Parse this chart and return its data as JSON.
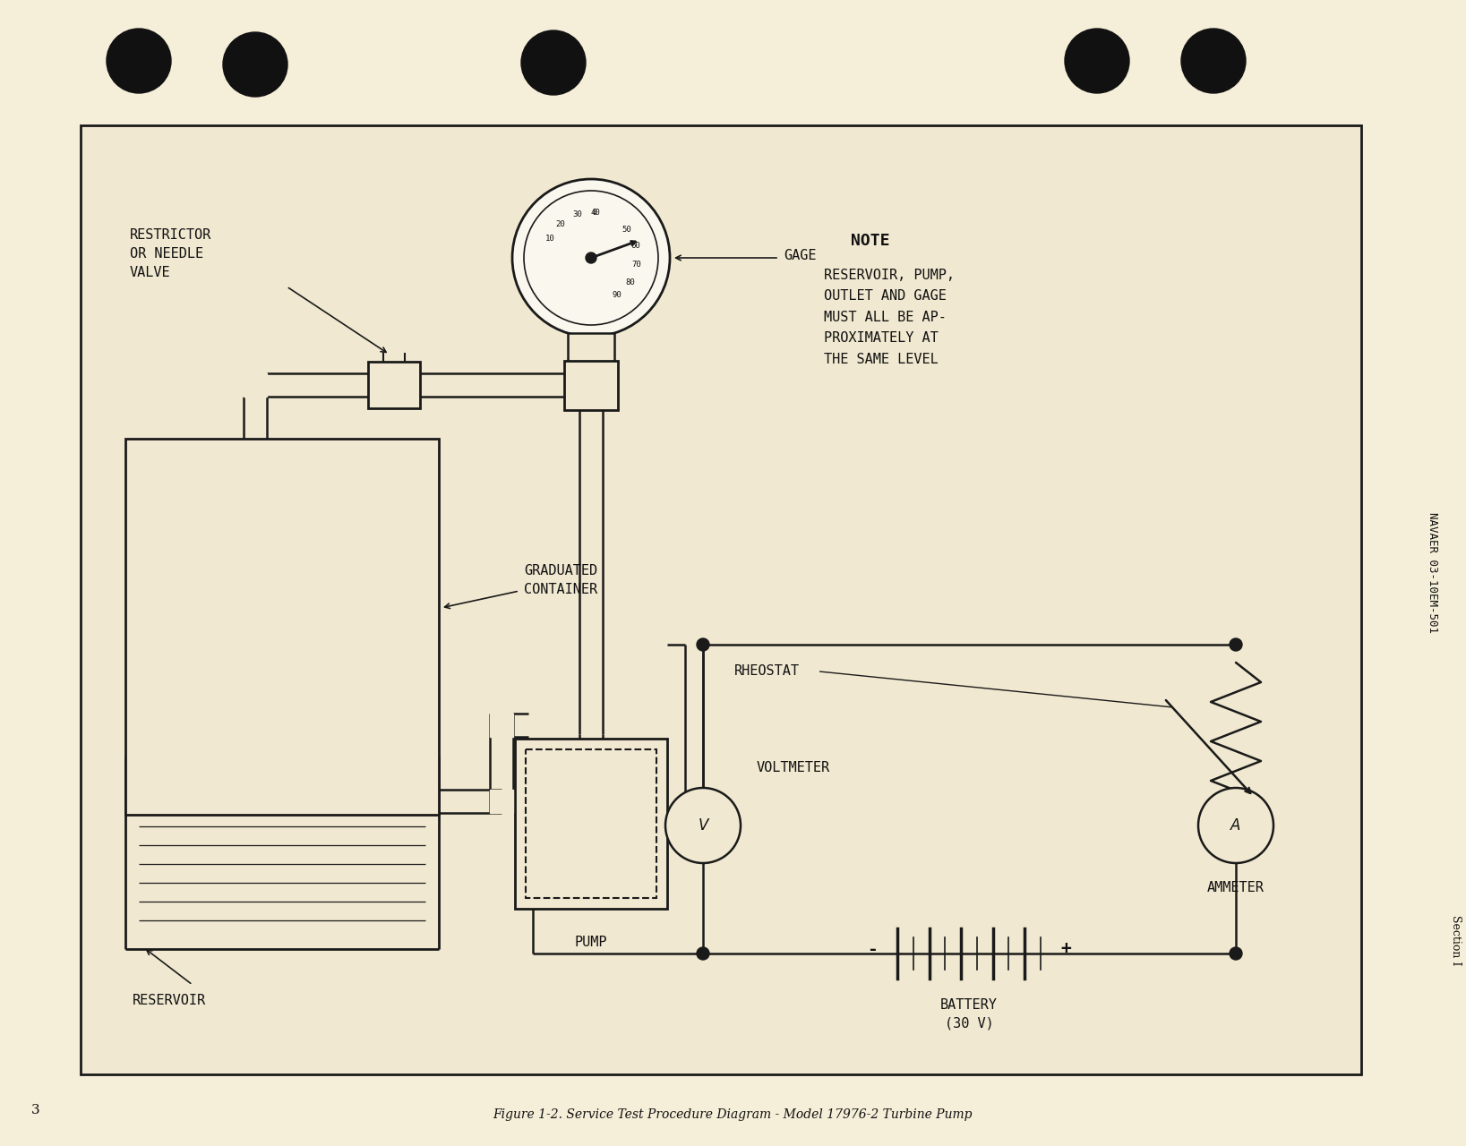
{
  "bg_page_color": "#f5eed8",
  "bg_diagram_color": "#f0e8d0",
  "line_color": "#1a1a1a",
  "text_color": "#111111",
  "caption": "Figure 1-2. Service Test Procedure Diagram - Model 17976-2 Turbine Pump",
  "page_number": "3",
  "side_text": "NAVAER 03-10EM-501",
  "section_text": "Section I",
  "note_title": "NOTE",
  "note_body": "RESERVOIR, PUMP,\nOUTLET AND GAGE\nMUST ALL BE AP-\nPROXIMATELY AT\nTHE SAME LEVEL",
  "label_restrictor": "RESTRICTOR\nOR NEEDLE\nVALVE",
  "label_gage": "GAGE",
  "label_graduated": "GRADUATED\nCONTAINER",
  "label_reservoir": "RESERVOIR",
  "label_pump": "PUMP",
  "label_rheostat": "RHEOSTAT",
  "label_voltmeter": "VOLTMETER",
  "label_v": "V",
  "label_ammeter": "AMMETER",
  "label_a": "A",
  "label_battery": "BATTERY\n(30 V)",
  "label_plus": "+",
  "label_minus": "-"
}
